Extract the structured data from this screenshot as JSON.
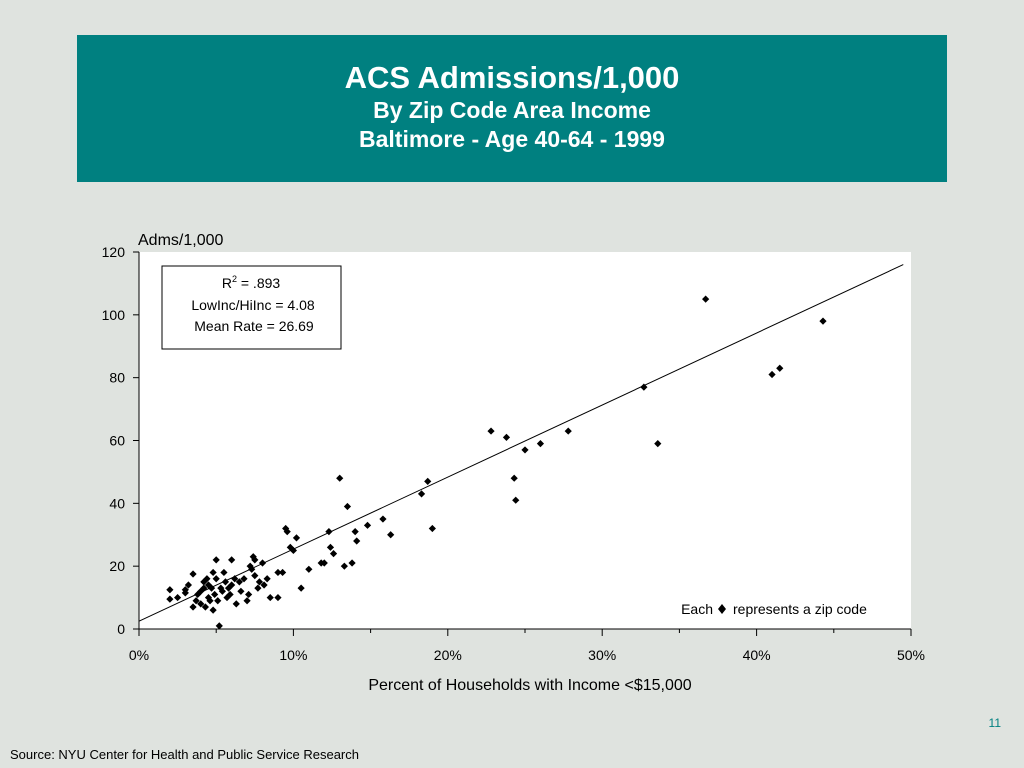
{
  "title": {
    "line1": "ACS Admissions/1,000",
    "line2": "By Zip Code Area Income",
    "line3": "Baltimore - Age 40-64 - 1999"
  },
  "chart_data": {
    "type": "scatter",
    "ylabel": "Adms/1,000",
    "xlabel": "Percent of Households with Income <$15,000",
    "xlim": [
      0,
      0.5
    ],
    "ylim": [
      0,
      120
    ],
    "x_ticks": [
      0,
      0.1,
      0.2,
      0.3,
      0.4,
      0.5
    ],
    "x_tick_labels": [
      "0%",
      "10%",
      "20%",
      "30%",
      "40%",
      "50%"
    ],
    "y_ticks": [
      0,
      20,
      40,
      60,
      80,
      100,
      120
    ],
    "y_tick_labels": [
      "0",
      "20",
      "40",
      "60",
      "80",
      "100",
      "120"
    ],
    "grid": false,
    "marker": "diamond",
    "marker_color": "#000000",
    "trendline": {
      "x": [
        0,
        0.495
      ],
      "y": [
        2.5,
        116
      ]
    },
    "stats_box": {
      "r_squared_label": "R",
      "r_squared_exp": "2",
      "r_squared_value": " = .893",
      "ratio": "LowInc/HiInc = 4.08",
      "mean": "Mean Rate = 26.69"
    },
    "legend_note": {
      "prefix": "Each",
      "suffix": "represents a zip code",
      "placement": "bottom-right"
    },
    "series": [
      {
        "points": [
          [
            0.02,
            12.5
          ],
          [
            0.02,
            9.5
          ],
          [
            0.025,
            10
          ],
          [
            0.03,
            11.5
          ],
          [
            0.03,
            12.5
          ],
          [
            0.032,
            14
          ],
          [
            0.035,
            17.5
          ],
          [
            0.035,
            7
          ],
          [
            0.037,
            9
          ],
          [
            0.038,
            11
          ],
          [
            0.04,
            8
          ],
          [
            0.04,
            12
          ],
          [
            0.042,
            13
          ],
          [
            0.042,
            15
          ],
          [
            0.043,
            7
          ],
          [
            0.044,
            16
          ],
          [
            0.045,
            14
          ],
          [
            0.045,
            10
          ],
          [
            0.046,
            9
          ],
          [
            0.047,
            13
          ],
          [
            0.048,
            18
          ],
          [
            0.048,
            6
          ],
          [
            0.049,
            11
          ],
          [
            0.05,
            22
          ],
          [
            0.05,
            16
          ],
          [
            0.051,
            9
          ],
          [
            0.052,
            1
          ],
          [
            0.053,
            13
          ],
          [
            0.054,
            12
          ],
          [
            0.055,
            18
          ],
          [
            0.056,
            15
          ],
          [
            0.057,
            10
          ],
          [
            0.058,
            13
          ],
          [
            0.059,
            11
          ],
          [
            0.06,
            22
          ],
          [
            0.06,
            14
          ],
          [
            0.062,
            16
          ],
          [
            0.063,
            8
          ],
          [
            0.065,
            15
          ],
          [
            0.066,
            12
          ],
          [
            0.068,
            16
          ],
          [
            0.07,
            9
          ],
          [
            0.071,
            11
          ],
          [
            0.072,
            20
          ],
          [
            0.073,
            19
          ],
          [
            0.074,
            23
          ],
          [
            0.075,
            22
          ],
          [
            0.075,
            17
          ],
          [
            0.077,
            13
          ],
          [
            0.078,
            15
          ],
          [
            0.08,
            21
          ],
          [
            0.081,
            14
          ],
          [
            0.083,
            16
          ],
          [
            0.085,
            10
          ],
          [
            0.09,
            18
          ],
          [
            0.09,
            10
          ],
          [
            0.093,
            18
          ],
          [
            0.095,
            32
          ],
          [
            0.096,
            31
          ],
          [
            0.098,
            26
          ],
          [
            0.1,
            25
          ],
          [
            0.102,
            29
          ],
          [
            0.105,
            13
          ],
          [
            0.11,
            19
          ],
          [
            0.118,
            21
          ],
          [
            0.12,
            21
          ],
          [
            0.123,
            31
          ],
          [
            0.124,
            26
          ],
          [
            0.126,
            24
          ],
          [
            0.13,
            48
          ],
          [
            0.133,
            20
          ],
          [
            0.135,
            39
          ],
          [
            0.138,
            21
          ],
          [
            0.14,
            31
          ],
          [
            0.141,
            28
          ],
          [
            0.148,
            33
          ],
          [
            0.158,
            35
          ],
          [
            0.163,
            30
          ],
          [
            0.183,
            43
          ],
          [
            0.187,
            47
          ],
          [
            0.19,
            32
          ],
          [
            0.228,
            63
          ],
          [
            0.238,
            61
          ],
          [
            0.243,
            48
          ],
          [
            0.244,
            41
          ],
          [
            0.25,
            57
          ],
          [
            0.26,
            59
          ],
          [
            0.278,
            63
          ],
          [
            0.327,
            77
          ],
          [
            0.336,
            59
          ],
          [
            0.367,
            105
          ],
          [
            0.41,
            81
          ],
          [
            0.415,
            83
          ],
          [
            0.443,
            98
          ]
        ]
      }
    ]
  },
  "footer": {
    "slide_number": "11",
    "source": "Source:  NYU Center for Health and Public Service Research"
  }
}
